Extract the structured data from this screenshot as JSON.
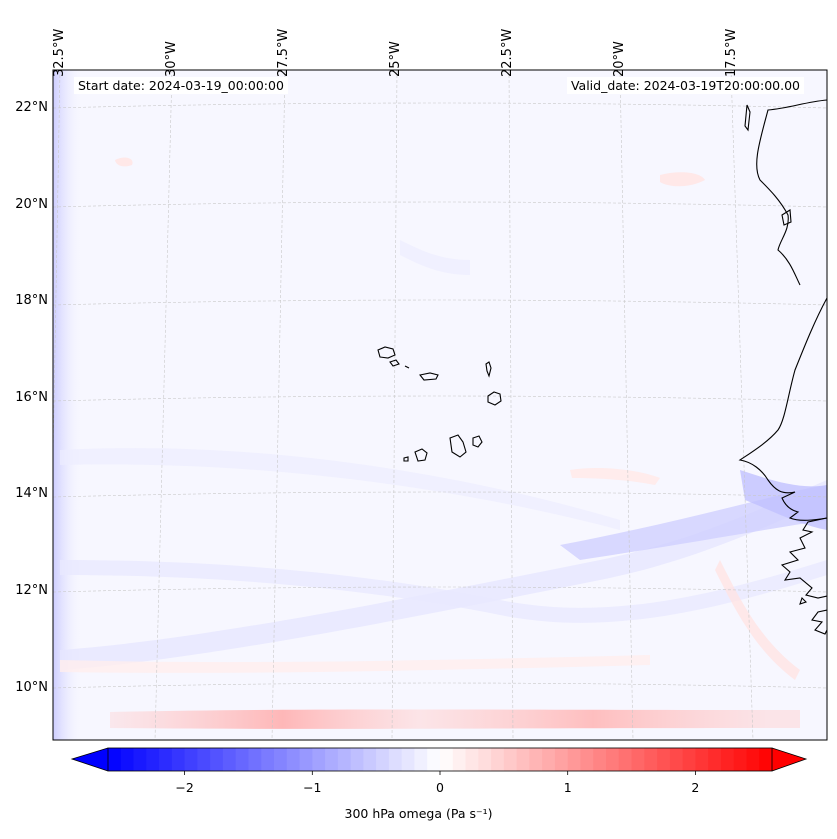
{
  "map": {
    "lon_labels": [
      {
        "lon": -32.5,
        "label": "32.5°W"
      },
      {
        "lon": -30.0,
        "label": "30°W"
      },
      {
        "lon": -27.5,
        "label": "27.5°W"
      },
      {
        "lon": -25.0,
        "label": "25°W"
      },
      {
        "lon": -22.5,
        "label": "22.5°W"
      },
      {
        "lon": -20.0,
        "label": "20°W"
      },
      {
        "lon": -17.5,
        "label": "17.5°W"
      }
    ],
    "lat_labels": [
      {
        "lat": 22,
        "label": "22°N"
      },
      {
        "lat": 20,
        "label": "20°N"
      },
      {
        "lat": 18,
        "label": "18°N"
      },
      {
        "lat": 16,
        "label": "16°N"
      },
      {
        "lat": 14,
        "label": "14°N"
      },
      {
        "lat": 12,
        "label": "12°N"
      },
      {
        "lat": 10,
        "label": "10°N"
      }
    ],
    "start_date": "Start date: 2024-03-19_00:00:00",
    "valid_date": "Valid_date: 2024-03-19T20:00:00.00",
    "features": [
      "cabo-verde-islands",
      "west-african-coastline"
    ]
  },
  "colorbar": {
    "min": -2.6,
    "max": 2.6,
    "ticks": [
      {
        "value": -2,
        "label": "−2"
      },
      {
        "value": -1,
        "label": "−1"
      },
      {
        "value": 0,
        "label": "0"
      },
      {
        "value": 1,
        "label": "1"
      },
      {
        "value": 2,
        "label": "2"
      }
    ],
    "title": "300 hPa omega (Pa s⁻¹)",
    "low_color": "#0000ff",
    "high_color": "#ff0000",
    "mid_color": "#ffffff"
  },
  "colors": {
    "background_tint": "#f8f8ff",
    "coast": "#000000",
    "grid": "#c8c8c8"
  }
}
